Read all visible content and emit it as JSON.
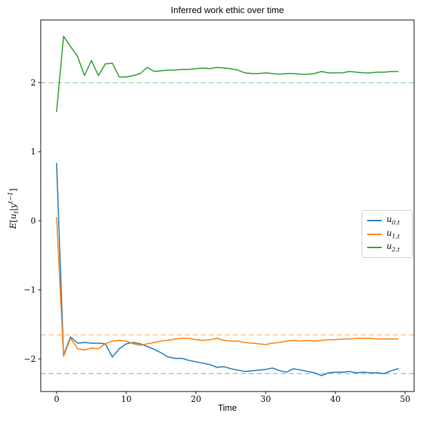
{
  "title": "Inferred work ethic over time",
  "chart_data": {
    "type": "line",
    "title": "Inferred work ethic over time",
    "xlabel": "Time",
    "ylabel": "E[u_t | y^(t-1)]",
    "ylabel_parts": {
      "E": "E",
      "open": "[",
      "u": "u",
      "sub_t": "t",
      "bar": "|",
      "y": "y",
      "sup": "t−1",
      "close": "]"
    },
    "xlim": [
      -2.28,
      51.29
    ],
    "ylim": [
      -2.47,
      2.905
    ],
    "xticks": [
      0,
      10,
      20,
      30,
      40,
      50
    ],
    "yticks": [
      -2,
      -1,
      0,
      1,
      2
    ],
    "grid": false,
    "legend_position": "center right",
    "frame_color": "#000000",
    "x": [
      0,
      1,
      2,
      3,
      4,
      5,
      6,
      7,
      8,
      9,
      10,
      11,
      12,
      13,
      14,
      15,
      16,
      17,
      18,
      19,
      20,
      21,
      22,
      23,
      24,
      25,
      26,
      27,
      28,
      29,
      30,
      31,
      32,
      33,
      34,
      35,
      36,
      37,
      38,
      39,
      40,
      41,
      42,
      43,
      44,
      45,
      46,
      47,
      48,
      49
    ],
    "series": [
      {
        "name": "u_{0,t}",
        "base": "u",
        "sub": "0,t",
        "color": "#1f77b4",
        "values": [
          0.83,
          -1.94,
          -1.68,
          -1.77,
          -1.76,
          -1.77,
          -1.77,
          -1.78,
          -1.97,
          -1.85,
          -1.78,
          -1.76,
          -1.78,
          -1.82,
          -1.86,
          -1.91,
          -1.97,
          -1.99,
          -1.99,
          -2.02,
          -2.04,
          -2.06,
          -2.08,
          -2.12,
          -2.11,
          -2.14,
          -2.16,
          -2.18,
          -2.17,
          -2.16,
          -2.15,
          -2.13,
          -2.17,
          -2.19,
          -2.14,
          -2.16,
          -2.18,
          -2.2,
          -2.24,
          -2.2,
          -2.19,
          -2.19,
          -2.18,
          -2.2,
          -2.19,
          -2.2,
          -2.2,
          -2.21,
          -2.17,
          -2.14
        ]
      },
      {
        "name": "u_{1,t}",
        "base": "u",
        "sub": "1,t",
        "color": "#ff7f0e",
        "values": [
          0.05,
          -1.96,
          -1.7,
          -1.85,
          -1.87,
          -1.84,
          -1.85,
          -1.78,
          -1.74,
          -1.73,
          -1.74,
          -1.78,
          -1.8,
          -1.78,
          -1.76,
          -1.74,
          -1.73,
          -1.71,
          -1.7,
          -1.7,
          -1.72,
          -1.73,
          -1.72,
          -1.7,
          -1.73,
          -1.74,
          -1.74,
          -1.76,
          -1.77,
          -1.78,
          -1.79,
          -1.77,
          -1.76,
          -1.74,
          -1.73,
          -1.74,
          -1.73,
          -1.74,
          -1.73,
          -1.72,
          -1.72,
          -1.71,
          -1.71,
          -1.7,
          -1.7,
          -1.7,
          -1.71,
          -1.71,
          -1.71,
          -1.71
        ]
      },
      {
        "name": "u_{2,t}",
        "base": "u",
        "sub": "2,t",
        "color": "#2ca02c",
        "values": [
          1.58,
          2.67,
          2.52,
          2.38,
          2.1,
          2.32,
          2.1,
          2.27,
          2.28,
          2.08,
          2.08,
          2.1,
          2.13,
          2.22,
          2.16,
          2.17,
          2.18,
          2.18,
          2.19,
          2.19,
          2.2,
          2.21,
          2.2,
          2.22,
          2.21,
          2.2,
          2.18,
          2.14,
          2.13,
          2.13,
          2.14,
          2.13,
          2.12,
          2.13,
          2.13,
          2.12,
          2.12,
          2.13,
          2.16,
          2.14,
          2.14,
          2.14,
          2.16,
          2.15,
          2.14,
          2.14,
          2.15,
          2.15,
          2.16,
          2.16
        ]
      }
    ],
    "reference_lines": [
      {
        "value": 2.0,
        "color": "#a2d5a2",
        "style": "dashed"
      },
      {
        "value": -1.65,
        "color": "#ffc795",
        "style": "dashed"
      },
      {
        "value": -2.21,
        "color": "#9fc6de",
        "style": "dashed"
      }
    ]
  }
}
